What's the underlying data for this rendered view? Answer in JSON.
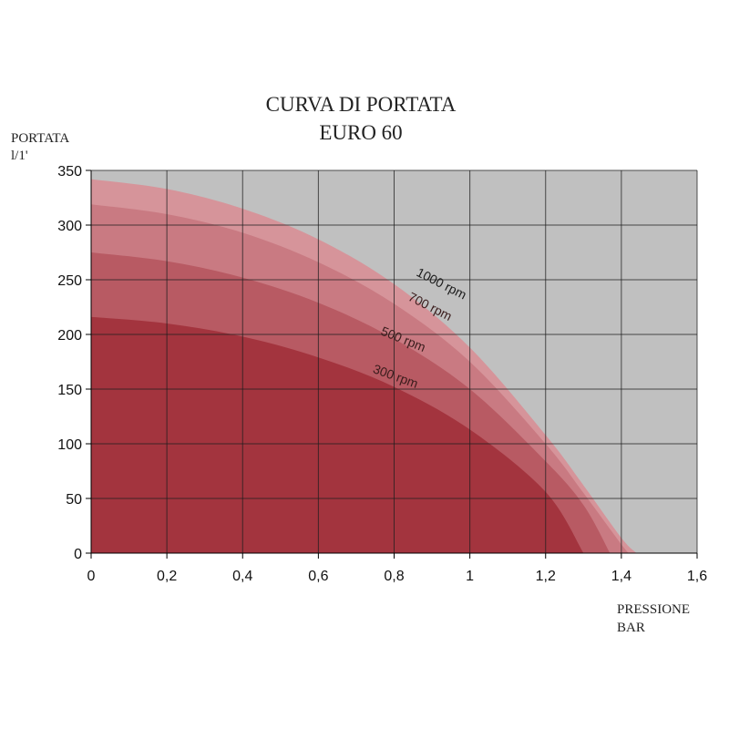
{
  "chart_data": {
    "type": "area",
    "title_lines": [
      "CURVA DI PORTATA",
      "EURO 60"
    ],
    "ylabel_lines": [
      "PORTATA",
      "l/1'"
    ],
    "xlabel_lines": [
      "PRESSIONE",
      "BAR"
    ],
    "xlim": [
      0,
      1.6
    ],
    "ylim": [
      0,
      350
    ],
    "x_ticks": [
      0,
      0.2,
      0.4,
      0.6,
      0.8,
      1,
      1.2,
      1.4,
      1.6
    ],
    "x_tick_labels": [
      "0",
      "0,2",
      "0,4",
      "0,6",
      "0,8",
      "1",
      "1,2",
      "1,4",
      "1,6"
    ],
    "y_ticks": [
      0,
      50,
      100,
      150,
      200,
      250,
      300,
      350
    ],
    "y_tick_labels": [
      "0",
      "50",
      "100",
      "150",
      "200",
      "250",
      "300",
      "350"
    ],
    "grid": true,
    "plot_background": "#c0c0c0",
    "series": [
      {
        "name": "1000 rpm",
        "color": "#d6949a",
        "x": [
          0,
          0.2,
          0.4,
          0.6,
          0.8,
          1.0,
          1.2,
          1.3,
          1.4,
          1.44
        ],
        "y": [
          342,
          333,
          315,
          287,
          246,
          188,
          108,
          62,
          14,
          0
        ]
      },
      {
        "name": "700 rpm",
        "color": "#c97a82",
        "x": [
          0,
          0.2,
          0.4,
          0.6,
          0.8,
          1.0,
          1.2,
          1.3,
          1.4,
          1.42
        ],
        "y": [
          319,
          310,
          293,
          266,
          228,
          175,
          100,
          55,
          8,
          0
        ]
      },
      {
        "name": "500 rpm",
        "color": "#b85a63",
        "x": [
          0,
          0.2,
          0.4,
          0.6,
          0.8,
          1.0,
          1.2,
          1.3,
          1.37
        ],
        "y": [
          275,
          267,
          252,
          229,
          196,
          150,
          84,
          44,
          0
        ]
      },
      {
        "name": "300 rpm",
        "color": "#a3343e",
        "x": [
          0,
          0.2,
          0.4,
          0.6,
          0.8,
          1.0,
          1.2,
          1.3
        ],
        "y": [
          216,
          210,
          198,
          179,
          152,
          113,
          56,
          0
        ]
      }
    ],
    "annotations": [
      {
        "text": "1000 rpm",
        "x": 0.92,
        "y": 243,
        "angle": 27,
        "color": "#1a1a1a"
      },
      {
        "text": "700 rpm",
        "x": 0.89,
        "y": 222,
        "angle": 27,
        "color": "#3a1c1c"
      },
      {
        "text": "500 rpm",
        "x": 0.82,
        "y": 192,
        "angle": 22,
        "color": "#3a1c1c"
      },
      {
        "text": "300 rpm",
        "x": 0.8,
        "y": 158,
        "angle": 20,
        "color": "#3a1c1c"
      }
    ]
  }
}
